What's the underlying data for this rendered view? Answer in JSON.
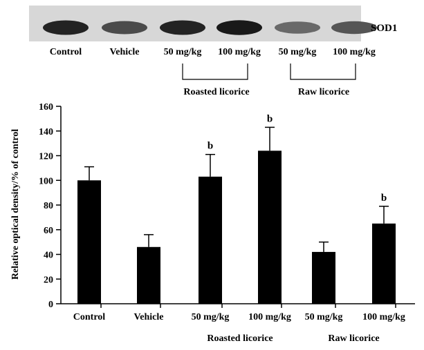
{
  "blot": {
    "protein_label": "SOD1",
    "lane_labels": [
      "Control",
      "Vehicle",
      "50 mg/kg",
      "100 mg/kg",
      "50 mg/kg",
      "100 mg/kg"
    ],
    "group_labels": [
      "Roasted licorice",
      "Raw licorice"
    ],
    "band_intensity": [
      0.9,
      0.7,
      0.9,
      0.95,
      0.55,
      0.65
    ]
  },
  "chart_data": {
    "type": "bar",
    "title": "",
    "xlabel": "",
    "ylabel": "Relative optical density/% of control",
    "ylim": [
      0,
      160
    ],
    "yticks": [
      0,
      20,
      40,
      60,
      80,
      100,
      120,
      140,
      160
    ],
    "categories": [
      "Control",
      "Vehicle",
      "50 mg/kg",
      "100 mg/kg",
      "50 mg/kg",
      "100 mg/kg"
    ],
    "values": [
      100,
      46,
      103,
      124,
      42,
      65
    ],
    "errors": [
      11,
      10,
      18,
      19,
      8,
      14
    ],
    "annotations": [
      "",
      "",
      "b",
      "b",
      "",
      "b"
    ],
    "groups": [
      {
        "label": "Roasted licorice",
        "categories": [
          2,
          3
        ]
      },
      {
        "label": "Raw licorice",
        "categories": [
          4,
          5
        ]
      }
    ],
    "bar_color": "#000000",
    "grid": false,
    "legend": "none"
  }
}
